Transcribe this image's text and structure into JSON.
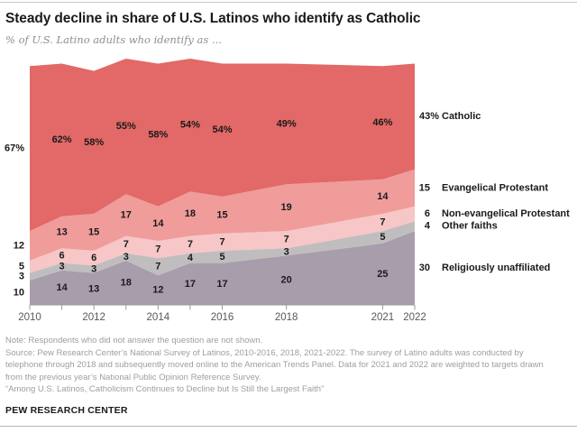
{
  "header": {
    "title": "Steady decline in share of U.S. Latinos who identify as Catholic",
    "subtitle": "% of U.S. Latino adults who identify as ..."
  },
  "chart_data": {
    "type": "area",
    "stacked": true,
    "x": [
      2010,
      2011,
      2012,
      2013,
      2014,
      2015,
      2016,
      2018,
      2021,
      2022
    ],
    "xlim": [
      2010,
      2022
    ],
    "ylim": [
      0,
      100
    ],
    "grid": false,
    "legend_position": "right-edge-labels",
    "x_tick_years": [
      2010,
      2011,
      2012,
      2013,
      2014,
      2015,
      2016,
      2018,
      2021,
      2022
    ],
    "x_tick_labels": [
      {
        "year": 2010,
        "label": "2010"
      },
      {
        "year": 2012,
        "label": "2012"
      },
      {
        "year": 2014,
        "label": "2014"
      },
      {
        "year": 2016,
        "label": "2016"
      },
      {
        "year": 2018,
        "label": "2018"
      },
      {
        "year": 2021,
        "label": "2021"
      },
      {
        "year": 2022,
        "label": "2022"
      }
    ],
    "series": [
      {
        "name": "Religiously unaffiliated",
        "color": "#A89DAA",
        "value_suffix": "",
        "values": [
          10,
          14,
          13,
          18,
          12,
          17,
          17,
          20,
          25,
          30
        ]
      },
      {
        "name": "Other faiths",
        "color": "#C0BDBF",
        "value_suffix": "",
        "values": [
          3,
          3,
          3,
          3,
          7,
          4,
          5,
          3,
          5,
          4
        ]
      },
      {
        "name": "Non-evangelical Protestant",
        "color": "#F7C6C7",
        "value_suffix": "",
        "values": [
          5,
          6,
          6,
          7,
          7,
          7,
          7,
          7,
          7,
          6
        ]
      },
      {
        "name": "Evangelical Protestant",
        "color": "#EF9C9B",
        "value_suffix": "",
        "values": [
          12,
          13,
          15,
          17,
          14,
          18,
          15,
          19,
          14,
          15
        ]
      },
      {
        "name": "Catholic",
        "color": "#E26967",
        "value_suffix": "%",
        "values": [
          67,
          62,
          58,
          55,
          58,
          54,
          54,
          49,
          46,
          43
        ]
      }
    ],
    "label_color": "#1a1a1a",
    "axis_color": "#9a9a9a",
    "tick_label_color": "#585858"
  },
  "notes": {
    "note": "Note: Respondents who did not answer the question are not shown.",
    "source": "Source: Pew Research Center’s National Survey of Latinos, 2010-2016, 2018, 2021-2022. The survey of Latino adults was conducted by telephone through 2018 and subsequently moved online to the American Trends Panel. Data for 2021 and 2022 are weighted to targets drawn from the previous year’s National Public Opinion Reference Survey.",
    "quote": "“Among U.S. Latinos, Catholicism Continues to Decline but Is Still the Largest Faith”"
  },
  "footer": {
    "brand": "PEW RESEARCH CENTER"
  }
}
